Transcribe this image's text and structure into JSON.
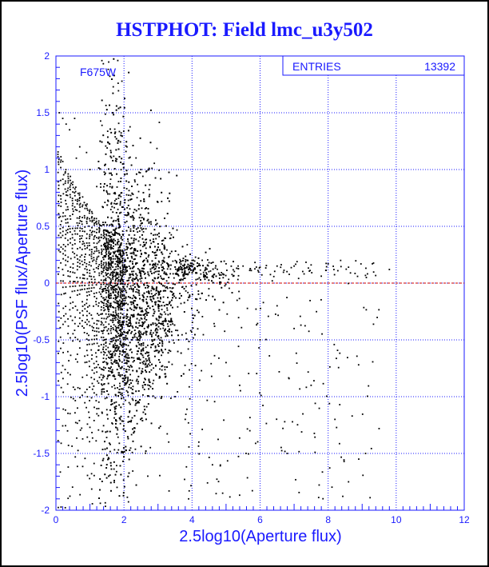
{
  "chart_data": {
    "type": "scatter",
    "title": "HSTPHOT: Field lmc_u3y502",
    "xlabel": "2.5log10(Aperture flux)",
    "ylabel": "2.5log10(PSF flux/Aperture flux)",
    "xlim": [
      0,
      12
    ],
    "ylim": [
      -2,
      2
    ],
    "xticks": [
      "0",
      "2",
      "4",
      "6",
      "8",
      "10",
      "12"
    ],
    "yticks": [
      "-2",
      "-1.5",
      "-1",
      "-0.5",
      "0",
      "0.5",
      "1",
      "1.5",
      "2"
    ],
    "grid": true,
    "filter_label": "F675W",
    "stats_box": {
      "label": "ENTRIES",
      "value": "13392"
    },
    "reference_line_y": 0,
    "entries": 13392,
    "marker_color": "#000000",
    "reference_line_color": "#cc0000",
    "axis_color": "#1a1aff",
    "points_sample": [
      [
        0.1,
        1.5
      ],
      [
        0.2,
        1.45
      ],
      [
        0.3,
        1.4
      ],
      [
        0.55,
        1.45
      ],
      [
        0.4,
        1.35
      ],
      [
        0.7,
        1.2
      ],
      [
        0.9,
        1.15
      ],
      [
        1.3,
        1.25
      ],
      [
        0.6,
        1.1
      ],
      [
        1.0,
        1.0
      ],
      [
        1.2,
        0.85
      ],
      [
        1.5,
        0.8
      ],
      [
        1.8,
        0.7
      ],
      [
        2.1,
        0.6
      ],
      [
        2.4,
        0.45
      ],
      [
        2.8,
        0.35
      ],
      [
        3.2,
        0.3
      ],
      [
        3.6,
        0.25
      ],
      [
        4.0,
        0.2
      ],
      [
        4.5,
        0.18
      ],
      [
        5.0,
        0.17
      ],
      [
        5.5,
        0.15
      ],
      [
        6.0,
        0.14
      ],
      [
        6.5,
        0.15
      ],
      [
        7.0,
        0.15
      ],
      [
        7.5,
        0.16
      ],
      [
        8.0,
        0.17
      ],
      [
        8.6,
        0.14
      ],
      [
        9.3,
        0.17
      ],
      [
        9.8,
        0.12
      ],
      [
        2.5,
        1.0
      ],
      [
        2.3,
        -0.2
      ],
      [
        2.6,
        -0.4
      ],
      [
        2.9,
        -0.6
      ],
      [
        3.2,
        -0.8
      ],
      [
        3.5,
        -1.0
      ],
      [
        3.8,
        -1.2
      ],
      [
        4.2,
        -1.4
      ],
      [
        4.6,
        -1.6
      ],
      [
        5.0,
        -0.7
      ],
      [
        5.4,
        -0.9
      ],
      [
        6.0,
        -0.5
      ],
      [
        6.5,
        -0.2
      ],
      [
        7.0,
        -0.4
      ],
      [
        7.5,
        -0.9
      ],
      [
        8.2,
        -1.2
      ],
      [
        8.9,
        -1.55
      ],
      [
        9.1,
        -1.5
      ],
      [
        8.6,
        -1.75
      ],
      [
        6.8,
        -1.5
      ],
      [
        5.7,
        -1.3
      ],
      [
        4.9,
        -1.85
      ],
      [
        3.9,
        -1.9
      ],
      [
        2.7,
        -1.7
      ]
    ]
  }
}
